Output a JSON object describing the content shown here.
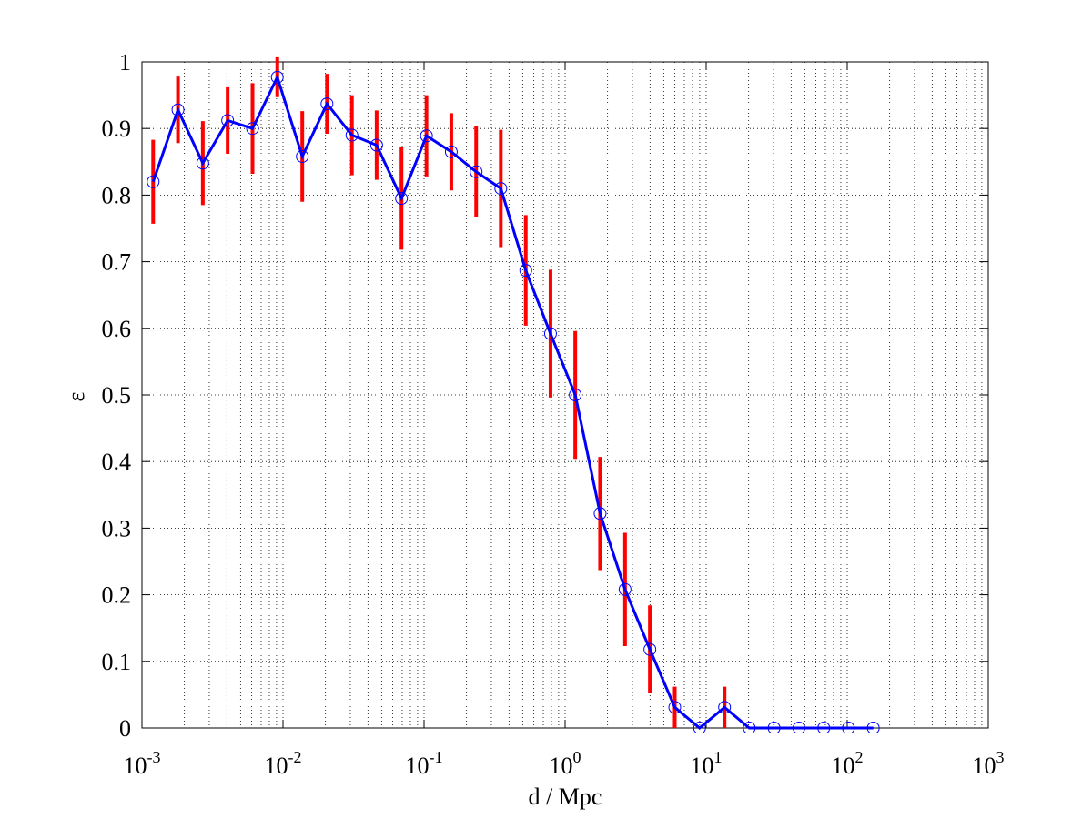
{
  "chart_data": {
    "type": "line",
    "xlabel": "d / Mpc",
    "ylabel": "ε",
    "x": [
      0.0012,
      0.0018,
      0.0027,
      0.00405,
      0.00608,
      0.00911,
      0.0137,
      0.0205,
      0.0308,
      0.0461,
      0.0692,
      0.104,
      0.156,
      0.234,
      0.35,
      0.526,
      0.788,
      1.18,
      1.77,
      2.66,
      3.99,
      5.99,
      8.98,
      13.5,
      20.2,
      30.3,
      45.5,
      68.2,
      102,
      153
    ],
    "values": [
      0.82,
      0.928,
      0.848,
      0.912,
      0.9,
      0.977,
      0.858,
      0.937,
      0.89,
      0.875,
      0.795,
      0.889,
      0.865,
      0.835,
      0.81,
      0.687,
      0.592,
      0.5,
      0.322,
      0.208,
      0.118,
      0.031,
      0,
      0.031,
      0,
      0,
      0,
      0,
      0,
      0
    ],
    "errors": [
      0.063,
      0.05,
      0.063,
      0.05,
      0.068,
      0.03,
      0.068,
      0.045,
      0.06,
      0.052,
      0.077,
      0.061,
      0.058,
      0.068,
      0.088,
      0.083,
      0.096,
      0.096,
      0.085,
      0.085,
      0.066,
      0.031,
      0,
      0.031,
      0,
      0,
      0,
      0,
      0,
      0
    ],
    "color": "#0000ff",
    "errorbar_color": "#ff0000",
    "xscale": "log",
    "xlim": [
      0.001,
      1000
    ],
    "xticks": [
      {
        "value": 0.001,
        "label": "10^-3"
      },
      {
        "value": 0.01,
        "label": "10^-2"
      },
      {
        "value": 0.1,
        "label": "10^-1"
      },
      {
        "value": 1,
        "label": "10^0"
      },
      {
        "value": 10,
        "label": "10^1"
      },
      {
        "value": 100,
        "label": "10^2"
      },
      {
        "value": 1000,
        "label": "10^3"
      }
    ],
    "ylim": [
      0,
      1
    ],
    "yticks": [
      0,
      0.1,
      0.2,
      0.3,
      0.4,
      0.5,
      0.6,
      0.7,
      0.8,
      0.9,
      1
    ],
    "grid": true
  }
}
